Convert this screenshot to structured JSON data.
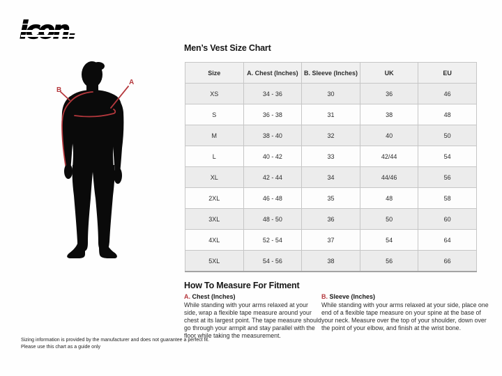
{
  "brand": {
    "logo_text": "icon."
  },
  "figure": {
    "chest_label": "A",
    "sleeve_label": "B"
  },
  "size_chart": {
    "title": "Men’s Vest Size Chart",
    "columns": [
      "Size",
      "A. Chest (Inches)",
      "B. Sleeve (Inches)",
      "UK",
      "EU"
    ],
    "rows": [
      [
        "XS",
        "34 - 36",
        "30",
        "36",
        "46"
      ],
      [
        "S",
        "36 - 38",
        "31",
        "38",
        "48"
      ],
      [
        "M",
        "38 - 40",
        "32",
        "40",
        "50"
      ],
      [
        "L",
        "40 - 42",
        "33",
        "42/44",
        "54"
      ],
      [
        "XL",
        "42 - 44",
        "34",
        "44/46",
        "56"
      ],
      [
        "2XL",
        "46 - 48",
        "35",
        "48",
        "58"
      ],
      [
        "3XL",
        "48 - 50",
        "36",
        "50",
        "60"
      ],
      [
        "4XL",
        "52 - 54",
        "37",
        "54",
        "64"
      ],
      [
        "5XL",
        "54 - 56",
        "38",
        "56",
        "66"
      ]
    ]
  },
  "how_to_measure": {
    "title": "How To Measure For Fitment",
    "sections": [
      {
        "prefix": "A.",
        "heading": "Chest (Inches)",
        "body": "While standing with your arms relaxed at your side, wrap a flexible tape measure around your chest at its largest point. The tape measure should go through your armpit and stay parallel with the floor while taking the measurement."
      },
      {
        "prefix": "B.",
        "heading": "Sleeve (Inches)",
        "body": "While standing with your arms relaxed at your side, place one end of a flexible tape measure on your spine at the base of your neck. Measure over the top of your shoulder, down over the point of your elbow, and finish at the wrist bone."
      }
    ]
  },
  "disclaimer": {
    "line1": "Sizing information is provided by the manufacturer and does not guarantee a perfect fit.",
    "line2": "Please use this chart as a guide only"
  },
  "colors": {
    "accent_red": "#b5383d",
    "silhouette_black": "#0a0a0a",
    "header_bg": "#f0f0f0",
    "alt_row_bg": "#ececec",
    "border": "#c6c6c6"
  }
}
